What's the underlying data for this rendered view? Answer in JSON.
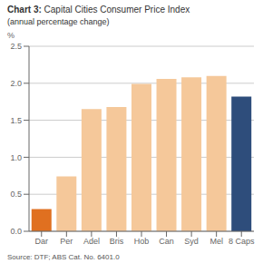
{
  "chart_data": {
    "type": "bar",
    "title": "Chart 3: Capital Cities Consumer Price Index",
    "subtitle": "(annual percentage change)",
    "ylabel": "%",
    "annotations": [
      "Source: DTF; ABS Cat. No. 6401.0"
    ],
    "categories": [
      "Dar",
      "Per",
      "Adel",
      "Bris",
      "Hob",
      "Can",
      "Syd",
      "Mel",
      "8 Caps"
    ],
    "values": [
      0.3,
      0.74,
      1.65,
      1.68,
      1.99,
      2.06,
      2.08,
      2.1,
      1.82
    ],
    "colors": [
      "#e07020",
      "#f5c89a",
      "#f5c89a",
      "#f5c89a",
      "#f5c89a",
      "#f5c89a",
      "#f5c89a",
      "#f5c89a",
      "#2e4d7b"
    ],
    "ylim": [
      0,
      2.5
    ],
    "yticks": [
      {
        "value": 0,
        "label": "0.0"
      },
      0.5,
      {
        "value": 1,
        "label": "1.0"
      },
      1.5,
      {
        "value": 2,
        "label": "2.0"
      },
      2.5
    ],
    "grid": true
  }
}
